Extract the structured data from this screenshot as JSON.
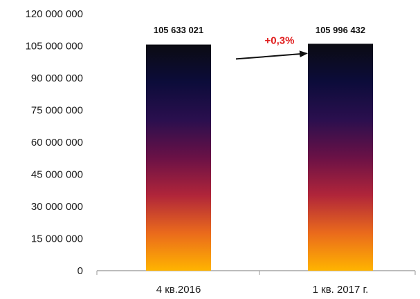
{
  "chart_data": {
    "type": "bar",
    "categories": [
      "4 кв.2016",
      "1 кв. 2017 г."
    ],
    "values": [
      105633021,
      105996432
    ],
    "data_labels": [
      "105 633 021",
      "105 996 432"
    ],
    "ylim": [
      0,
      120000000
    ],
    "yticks": [
      0,
      15000000,
      30000000,
      45000000,
      60000000,
      75000000,
      90000000,
      105000000,
      120000000
    ],
    "ytick_labels": [
      "0",
      "15 000 000",
      "30 000 000",
      "45 000 000",
      "60 000 000",
      "75 000 000",
      "90 000 000",
      "105 000 000",
      "120 000 000"
    ],
    "grid": false,
    "legend": "none",
    "annotation": {
      "text": "+0,3%",
      "color": "#e01b1b",
      "arrow_color": "#111111"
    },
    "bar_gradient": [
      "#0b0b12",
      "#0c0c3a",
      "#2a0f4e",
      "#6a1146",
      "#b0253a",
      "#ea6a1c",
      "#ffb400"
    ],
    "axis_color": "#a6a6a6"
  }
}
